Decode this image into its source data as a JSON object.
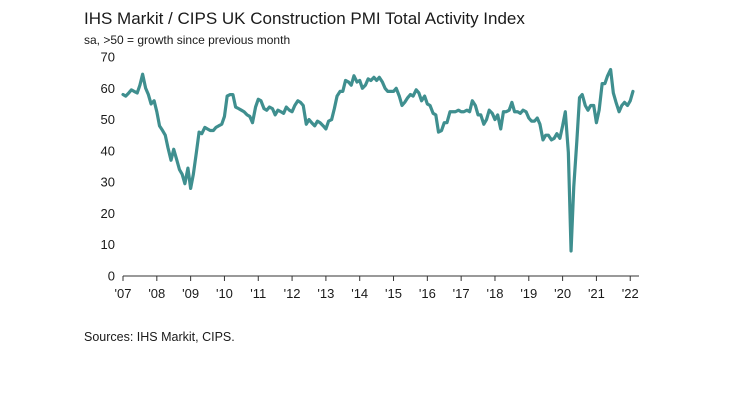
{
  "chart_data": {
    "type": "line",
    "title": "IHS Markit / CIPS UK Construction PMI Total Activity Index",
    "subtitle": "sa, >50 = growth since previous month",
    "xlabel": "",
    "ylabel": "",
    "ylim": [
      0,
      70
    ],
    "yticks": [
      0,
      10,
      20,
      30,
      40,
      50,
      60,
      70
    ],
    "xlim": [
      2007.0,
      2022.2
    ],
    "xticks": [
      {
        "value": 2007,
        "label": "'07"
      },
      {
        "value": 2008,
        "label": "'08"
      },
      {
        "value": 2009,
        "label": "'09"
      },
      {
        "value": 2010,
        "label": "'10"
      },
      {
        "value": 2011,
        "label": "'11"
      },
      {
        "value": 2012,
        "label": "'12"
      },
      {
        "value": 2013,
        "label": "'13"
      },
      {
        "value": 2014,
        "label": "'14"
      },
      {
        "value": 2015,
        "label": "'15"
      },
      {
        "value": 2016,
        "label": "'16"
      },
      {
        "value": 2017,
        "label": "'17"
      },
      {
        "value": 2018,
        "label": "'18"
      },
      {
        "value": 2019,
        "label": "'19"
      },
      {
        "value": 2020,
        "label": "'20"
      },
      {
        "value": 2021,
        "label": "'21"
      },
      {
        "value": 2022,
        "label": "'22"
      }
    ],
    "grid": false,
    "legend": "none",
    "series": [
      {
        "name": "UK Construction PMI Total Activity Index",
        "color": "#3f8f8f",
        "points": [
          [
            2007.0,
            58.0
          ],
          [
            2007.08,
            57.5
          ],
          [
            2007.17,
            58.5
          ],
          [
            2007.25,
            59.5
          ],
          [
            2007.33,
            59.0
          ],
          [
            2007.42,
            58.5
          ],
          [
            2007.5,
            61.0
          ],
          [
            2007.58,
            64.5
          ],
          [
            2007.67,
            60.0
          ],
          [
            2007.75,
            58.0
          ],
          [
            2007.83,
            55.0
          ],
          [
            2007.92,
            56.0
          ],
          [
            2008.0,
            52.5
          ],
          [
            2008.08,
            48.0
          ],
          [
            2008.17,
            46.5
          ],
          [
            2008.25,
            45.0
          ],
          [
            2008.33,
            41.0
          ],
          [
            2008.42,
            37.0
          ],
          [
            2008.5,
            40.5
          ],
          [
            2008.58,
            37.5
          ],
          [
            2008.67,
            34.0
          ],
          [
            2008.75,
            32.5
          ],
          [
            2008.83,
            29.5
          ],
          [
            2008.92,
            34.5
          ],
          [
            2009.0,
            28.0
          ],
          [
            2009.08,
            32.5
          ],
          [
            2009.17,
            39.5
          ],
          [
            2009.25,
            46.0
          ],
          [
            2009.33,
            45.5
          ],
          [
            2009.42,
            47.5
          ],
          [
            2009.5,
            47.0
          ],
          [
            2009.58,
            46.5
          ],
          [
            2009.67,
            46.5
          ],
          [
            2009.75,
            47.5
          ],
          [
            2009.83,
            48.0
          ],
          [
            2009.92,
            48.5
          ],
          [
            2010.0,
            51.0
          ],
          [
            2010.08,
            57.5
          ],
          [
            2010.17,
            58.0
          ],
          [
            2010.25,
            58.0
          ],
          [
            2010.33,
            54.0
          ],
          [
            2010.42,
            53.5
          ],
          [
            2010.5,
            53.0
          ],
          [
            2010.58,
            52.5
          ],
          [
            2010.67,
            51.5
          ],
          [
            2010.75,
            51.0
          ],
          [
            2010.83,
            49.0
          ],
          [
            2010.92,
            54.0
          ],
          [
            2011.0,
            56.5
          ],
          [
            2011.08,
            56.0
          ],
          [
            2011.17,
            53.5
          ],
          [
            2011.25,
            53.0
          ],
          [
            2011.33,
            54.0
          ],
          [
            2011.42,
            53.5
          ],
          [
            2011.5,
            51.5
          ],
          [
            2011.58,
            53.0
          ],
          [
            2011.67,
            52.5
          ],
          [
            2011.75,
            52.0
          ],
          [
            2011.83,
            54.0
          ],
          [
            2011.92,
            53.0
          ],
          [
            2012.0,
            52.5
          ],
          [
            2012.08,
            54.5
          ],
          [
            2012.17,
            56.0
          ],
          [
            2012.25,
            55.5
          ],
          [
            2012.33,
            54.5
          ],
          [
            2012.42,
            48.5
          ],
          [
            2012.5,
            50.0
          ],
          [
            2012.58,
            49.0
          ],
          [
            2012.67,
            48.0
          ],
          [
            2012.75,
            49.5
          ],
          [
            2012.83,
            49.0
          ],
          [
            2012.92,
            48.0
          ],
          [
            2013.0,
            47.0
          ],
          [
            2013.08,
            49.5
          ],
          [
            2013.17,
            50.0
          ],
          [
            2013.25,
            53.5
          ],
          [
            2013.33,
            57.5
          ],
          [
            2013.42,
            59.0
          ],
          [
            2013.5,
            59.0
          ],
          [
            2013.58,
            62.5
          ],
          [
            2013.67,
            62.0
          ],
          [
            2013.75,
            61.0
          ],
          [
            2013.83,
            64.0
          ],
          [
            2013.92,
            62.0
          ],
          [
            2014.0,
            62.5
          ],
          [
            2014.08,
            60.0
          ],
          [
            2014.17,
            61.0
          ],
          [
            2014.25,
            63.0
          ],
          [
            2014.33,
            62.5
          ],
          [
            2014.42,
            63.5
          ],
          [
            2014.5,
            62.5
          ],
          [
            2014.58,
            63.5
          ],
          [
            2014.67,
            62.0
          ],
          [
            2014.75,
            60.0
          ],
          [
            2014.83,
            59.0
          ],
          [
            2014.92,
            59.0
          ],
          [
            2015.0,
            59.0
          ],
          [
            2015.08,
            60.0
          ],
          [
            2015.17,
            57.5
          ],
          [
            2015.25,
            54.5
          ],
          [
            2015.33,
            55.5
          ],
          [
            2015.42,
            57.0
          ],
          [
            2015.5,
            58.0
          ],
          [
            2015.58,
            57.5
          ],
          [
            2015.67,
            59.5
          ],
          [
            2015.75,
            58.5
          ],
          [
            2015.83,
            56.0
          ],
          [
            2015.92,
            57.5
          ],
          [
            2016.0,
            55.0
          ],
          [
            2016.08,
            54.5
          ],
          [
            2016.17,
            52.0
          ],
          [
            2016.25,
            51.5
          ],
          [
            2016.33,
            46.0
          ],
          [
            2016.42,
            46.5
          ],
          [
            2016.5,
            49.0
          ],
          [
            2016.58,
            49.0
          ],
          [
            2016.67,
            52.5
          ],
          [
            2016.75,
            52.5
          ],
          [
            2016.83,
            52.5
          ],
          [
            2016.92,
            53.0
          ],
          [
            2017.0,
            52.5
          ],
          [
            2017.08,
            52.5
          ],
          [
            2017.17,
            53.0
          ],
          [
            2017.25,
            52.5
          ],
          [
            2017.33,
            56.0
          ],
          [
            2017.42,
            54.5
          ],
          [
            2017.5,
            51.5
          ],
          [
            2017.58,
            51.5
          ],
          [
            2017.67,
            48.5
          ],
          [
            2017.75,
            50.0
          ],
          [
            2017.83,
            53.0
          ],
          [
            2017.92,
            52.0
          ],
          [
            2018.0,
            50.0
          ],
          [
            2018.08,
            51.5
          ],
          [
            2018.17,
            47.0
          ],
          [
            2018.25,
            52.5
          ],
          [
            2018.33,
            52.5
          ],
          [
            2018.42,
            53.0
          ],
          [
            2018.5,
            55.5
          ],
          [
            2018.58,
            52.5
          ],
          [
            2018.67,
            52.5
          ],
          [
            2018.75,
            52.0
          ],
          [
            2018.83,
            53.0
          ],
          [
            2018.92,
            52.5
          ],
          [
            2019.0,
            50.5
          ],
          [
            2019.08,
            49.5
          ],
          [
            2019.17,
            49.5
          ],
          [
            2019.25,
            50.5
          ],
          [
            2019.33,
            48.5
          ],
          [
            2019.42,
            43.5
          ],
          [
            2019.5,
            45.0
          ],
          [
            2019.58,
            45.0
          ],
          [
            2019.67,
            43.5
          ],
          [
            2019.75,
            44.0
          ],
          [
            2019.83,
            45.5
          ],
          [
            2019.92,
            44.0
          ],
          [
            2020.0,
            48.0
          ],
          [
            2020.08,
            52.5
          ],
          [
            2020.17,
            39.5
          ],
          [
            2020.25,
            8.0
          ],
          [
            2020.33,
            28.5
          ],
          [
            2020.42,
            43.0
          ],
          [
            2020.5,
            57.0
          ],
          [
            2020.58,
            58.0
          ],
          [
            2020.67,
            54.5
          ],
          [
            2020.75,
            53.0
          ],
          [
            2020.83,
            54.5
          ],
          [
            2020.92,
            54.5
          ],
          [
            2021.0,
            49.0
          ],
          [
            2021.08,
            53.0
          ],
          [
            2021.17,
            61.5
          ],
          [
            2021.25,
            61.5
          ],
          [
            2021.33,
            64.0
          ],
          [
            2021.42,
            66.0
          ],
          [
            2021.5,
            58.5
          ],
          [
            2021.58,
            55.5
          ],
          [
            2021.67,
            52.5
          ],
          [
            2021.75,
            54.5
          ],
          [
            2021.83,
            55.5
          ],
          [
            2021.92,
            54.5
          ],
          [
            2022.0,
            56.0
          ],
          [
            2022.08,
            59.0
          ]
        ]
      }
    ],
    "source_note": "Sources: IHS Markit, CIPS."
  }
}
